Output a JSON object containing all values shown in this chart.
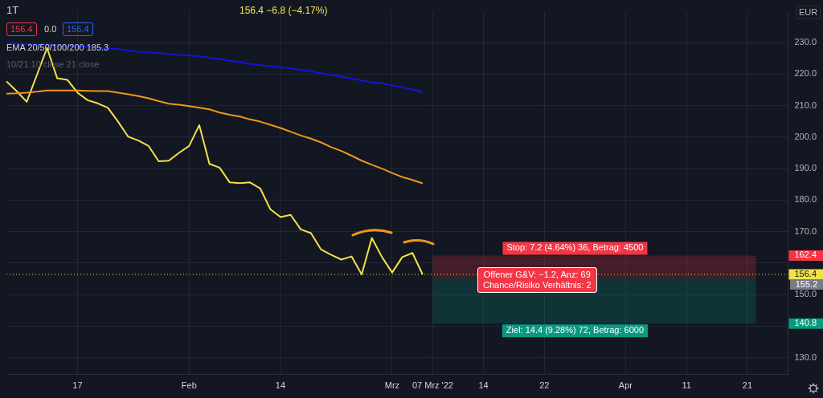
{
  "chart_data": {
    "type": "line",
    "title": "1T",
    "categories": [
      null,
      null,
      null,
      null,
      null,
      null,
      null,
      "17",
      null,
      null,
      null,
      null,
      null,
      null,
      null,
      null,
      null,
      null,
      "Feb",
      null,
      null,
      null,
      null,
      null,
      null,
      null,
      null,
      "14",
      null,
      null,
      null,
      null,
      null,
      null,
      null,
      null,
      null,
      null,
      "Mrz",
      null,
      null,
      null,
      "07 Mrz '22",
      null,
      null,
      null,
      null,
      "14",
      null,
      null,
      null,
      null,
      null,
      "22",
      null,
      null,
      null,
      null,
      null,
      null,
      null,
      "Apr",
      null,
      null,
      null,
      null,
      null,
      "11",
      null,
      null,
      null,
      null,
      null,
      "21",
      null,
      null,
      null,
      null
    ],
    "series": [
      {
        "color": "#1414d8",
        "values": [
          229.8,
          229.7,
          229.5,
          229.3,
          229.3,
          229.1,
          229.0,
          228.8,
          228.6,
          228.4,
          228.2,
          227.9,
          227.5,
          227.1,
          226.9,
          226.7,
          226.4,
          226.1,
          225.9,
          225.7,
          225.2,
          224.8,
          224.2,
          223.8,
          223.2,
          222.8,
          222.5,
          222.2,
          221.8,
          221.3,
          220.9,
          220.3,
          219.7,
          219.2,
          218.6,
          218.0,
          217.4,
          217.0,
          216.4,
          215.8,
          215.1,
          214.3,
          null,
          null,
          null,
          null,
          null,
          null,
          null,
          null,
          null,
          null,
          null,
          null,
          null,
          null,
          null,
          null,
          null,
          null,
          null,
          null,
          null,
          null,
          null,
          null,
          null,
          null,
          null,
          null,
          null,
          null,
          null,
          null,
          null,
          null,
          null,
          null
        ]
      },
      {
        "color": "#f0961c",
        "values": [
          213.8,
          213.9,
          214.1,
          214.4,
          214.8,
          214.8,
          214.8,
          214.8,
          214.7,
          214.6,
          214.6,
          214.1,
          213.6,
          213.0,
          212.3,
          211.4,
          210.6,
          210.3,
          209.8,
          209.3,
          208.8,
          207.8,
          207.1,
          206.5,
          205.6,
          204.9,
          203.9,
          202.9,
          201.7,
          200.5,
          199.5,
          198.3,
          196.8,
          195.6,
          194.1,
          192.5,
          191.2,
          190.0,
          188.6,
          187.3,
          186.4,
          185.3,
          null,
          null,
          null,
          null,
          null,
          null,
          null,
          null,
          null,
          null,
          null,
          null,
          null,
          null,
          null,
          null,
          null,
          null,
          null,
          null,
          null,
          null,
          null,
          null,
          null,
          null,
          null,
          null,
          null,
          null,
          null,
          null,
          null,
          null,
          null,
          null
        ]
      },
      {
        "color": "#f2e24a",
        "values": [
          217.7,
          214.6,
          211.2,
          219.7,
          228.3,
          218.7,
          218.2,
          214.1,
          211.7,
          210.7,
          209.3,
          204.9,
          200.1,
          198.9,
          197.2,
          192.3,
          192.5,
          195.0,
          197.2,
          203.8,
          191.5,
          190.3,
          185.6,
          185.4,
          185.6,
          183.7,
          177.1,
          174.6,
          175.3,
          170.7,
          169.5,
          164.3,
          162.6,
          161.1,
          162.1,
          156.4,
          168.0,
          161.9,
          157.0,
          161.9,
          163.2,
          156.4,
          null,
          null,
          null,
          null,
          null,
          null,
          null,
          null,
          null,
          null,
          null,
          null,
          null,
          null,
          null,
          null,
          null,
          null,
          null,
          null,
          null,
          null,
          null,
          null,
          null,
          null,
          null,
          null,
          null,
          null,
          null,
          null,
          null,
          null,
          null,
          null
        ]
      }
    ],
    "ylim": [
      124.6,
      239.8
    ],
    "yticks": [
      {
        "value": 130,
        "label": "130.0"
      },
      {
        "value": 140,
        "label": null
      },
      {
        "value": 150,
        "label": "150.0"
      },
      {
        "value": 160,
        "label": null
      },
      {
        "value": 170,
        "label": "170.0"
      },
      {
        "value": 180,
        "label": "180.0"
      },
      {
        "value": 190,
        "label": "190.0"
      },
      {
        "value": 200,
        "label": "200.0"
      },
      {
        "value": 210,
        "label": "210.0"
      },
      {
        "value": 220,
        "label": "220.0"
      },
      {
        "value": 230,
        "label": "230.0"
      }
    ],
    "ref_lines": [
      {
        "axis": "y",
        "value": 156.4,
        "color": "#f2e24a",
        "line_style": "dotted"
      }
    ],
    "bands": [
      {
        "axis": "y",
        "from": 155.2,
        "to": 162.4,
        "label": "Stop: 7.2 (4.64%) 36, Betrag: 4500",
        "color": "#f23645"
      },
      {
        "axis": "y",
        "from": 140.8,
        "to": 155.2,
        "label": "Ziel: 14.4 (9.28%) 72, Betrag: 6000",
        "color": "#089981"
      }
    ],
    "annotations": [
      "156.4 −6.8 (−4.17%)",
      "156.4",
      "0.0",
      "156.4",
      "EMA 20/50/100/200 185.3",
      "10/21 10 close 21 close",
      "EUR",
      "Offener G&V: −1.2, Anz: 69\nChance/Risiko Verhältnis: 2",
      {
        "text": "162.4",
        "y": 162.4
      },
      "155.2",
      {
        "text": "140.8",
        "y": 140.8
      }
    ],
    "grid": true,
    "legend": false,
    "marker": "none",
    "line_style": "solid"
  }
}
